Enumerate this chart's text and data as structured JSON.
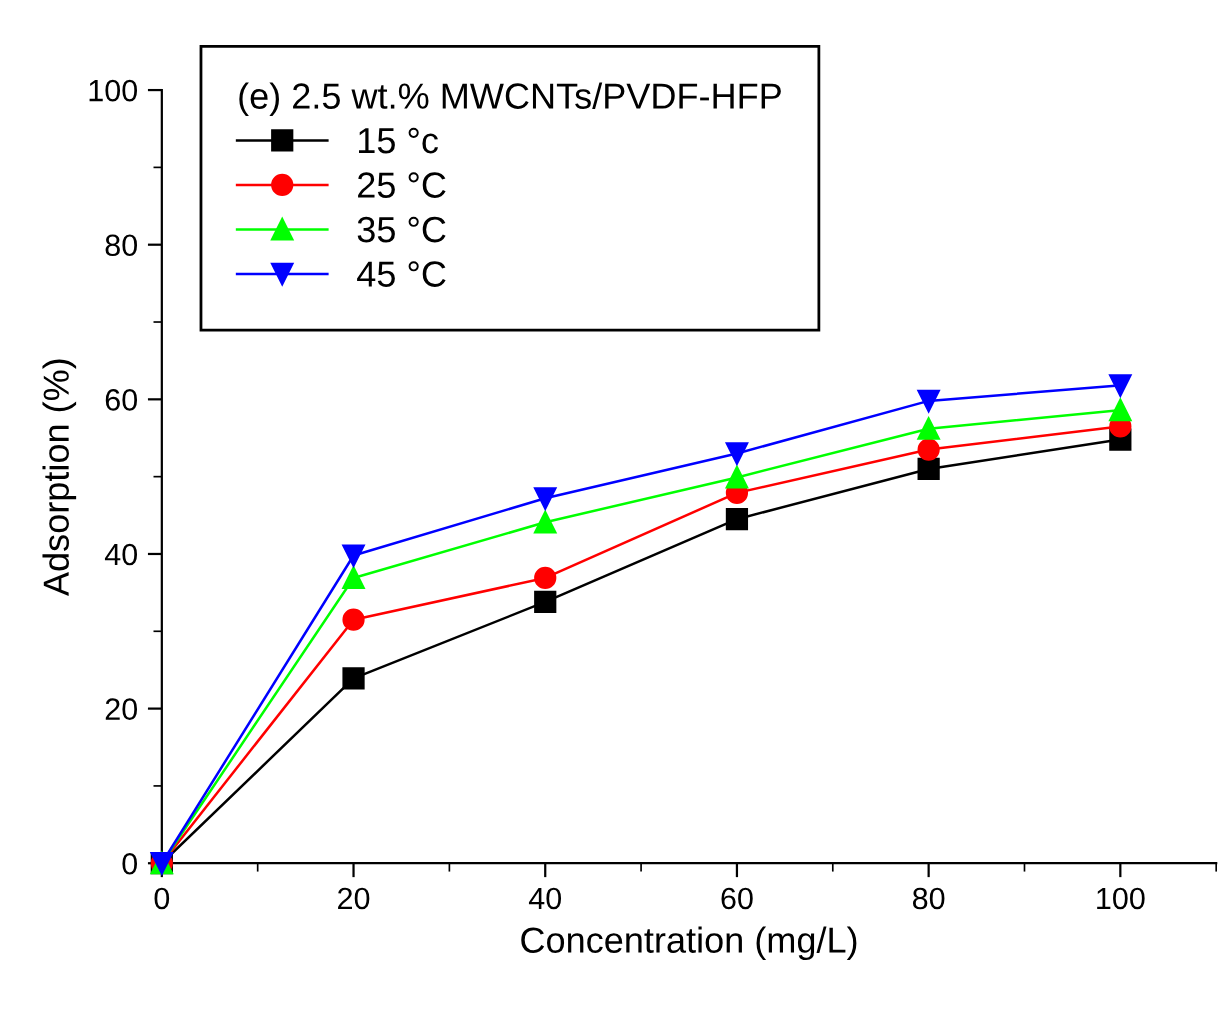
{
  "chart_data": {
    "type": "line",
    "xlabel": "Concentration (mg/L)",
    "ylabel": "Adsorption (%)",
    "legend_title": "(e) 2.5 wt.% MWCNTs/PVDF-HFP",
    "x": [
      0,
      20,
      40,
      60,
      80,
      100
    ],
    "series": [
      {
        "name": "15 °c",
        "color": "#000000",
        "marker": "square",
        "values": [
          0,
          23.9,
          33.8,
          44.5,
          51,
          54.8
        ]
      },
      {
        "name": "25 °C",
        "color": "#ff0000",
        "marker": "circle",
        "values": [
          0,
          31.5,
          36.9,
          47.9,
          53.5,
          56.5
        ]
      },
      {
        "name": "35 °C",
        "color": "#00ff00",
        "marker": "triangle",
        "values": [
          0,
          36.9,
          44.1,
          49.9,
          56.2,
          58.6
        ]
      },
      {
        "name": "45 °C",
        "color": "#0000ff",
        "marker": "triangle_down",
        "values": [
          0,
          39.8,
          47.2,
          53,
          59.8,
          61.8
        ]
      }
    ],
    "xlim": [
      0,
      110
    ],
    "xticks": [
      0,
      20,
      40,
      60,
      80,
      100
    ],
    "ylim": [
      0,
      100
    ],
    "yticks": [
      0,
      20,
      40,
      60,
      80,
      100
    ],
    "grid": false,
    "legend": "top left",
    "line_style": "solid"
  }
}
